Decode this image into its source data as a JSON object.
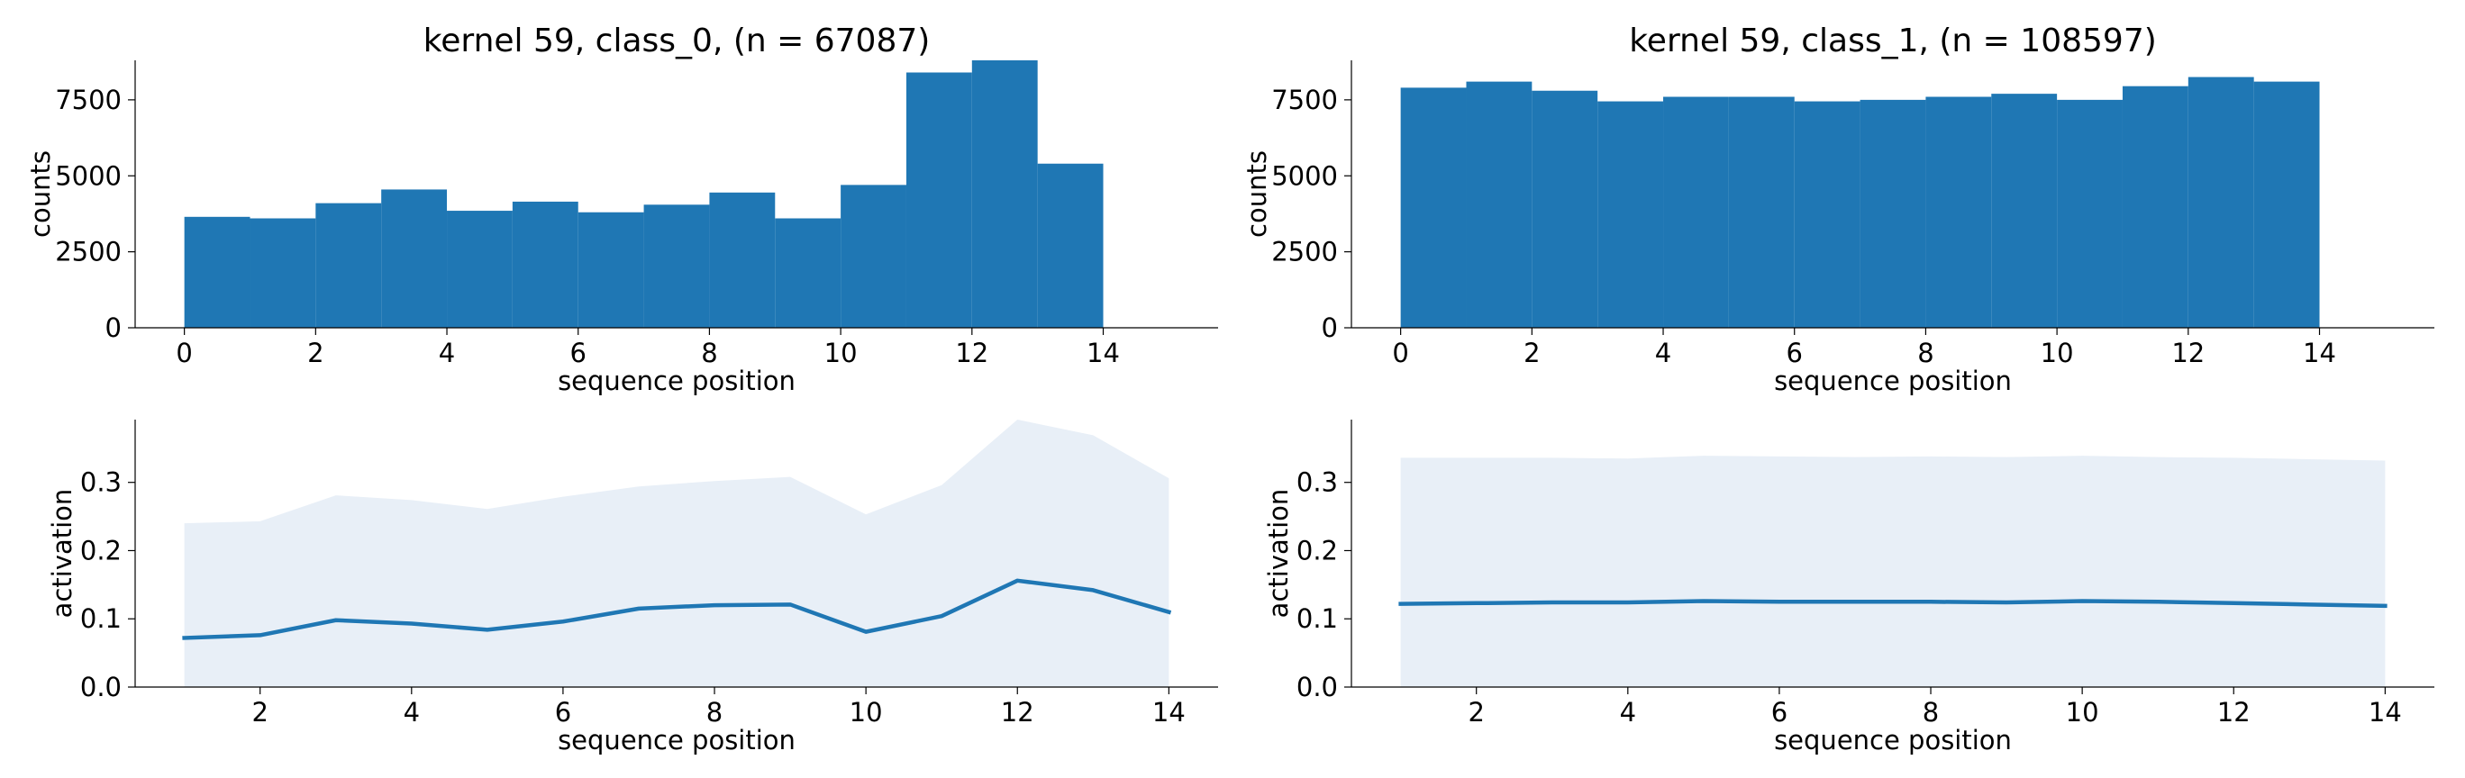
{
  "chart_data": [
    {
      "type": "bar",
      "title": "kernel 59, class_0, (n = 67087)",
      "xlabel": "sequence position",
      "ylabel": "counts",
      "bin_edges": [
        0,
        1,
        2,
        3,
        4,
        5,
        6,
        7,
        8,
        9,
        10,
        11,
        12,
        13,
        14
      ],
      "values": [
        3650,
        3600,
        4100,
        4550,
        3850,
        4150,
        3800,
        4050,
        4450,
        3600,
        4700,
        8400,
        8800,
        5400
      ],
      "xlim": [
        -0.75,
        15.75
      ],
      "ylim": [
        0,
        8800
      ],
      "xticks": [
        0,
        2,
        4,
        6,
        8,
        10,
        12,
        14
      ],
      "yticks": [
        0,
        2500,
        5000,
        7500
      ],
      "color": "#1f77b4",
      "grid": false
    },
    {
      "type": "bar",
      "title": "kernel 59, class_1, (n = 108597)",
      "xlabel": "sequence position",
      "ylabel": "counts",
      "bin_edges": [
        0,
        1,
        2,
        3,
        4,
        5,
        6,
        7,
        8,
        9,
        10,
        11,
        12,
        13,
        14
      ],
      "values": [
        7900,
        8100,
        7800,
        7450,
        7600,
        7600,
        7450,
        7500,
        7600,
        7700,
        7500,
        7950,
        8250,
        8100
      ],
      "xlim": [
        -0.75,
        15.75
      ],
      "ylim": [
        0,
        8800
      ],
      "xticks": [
        0,
        2,
        4,
        6,
        8,
        10,
        12,
        14
      ],
      "yticks": [
        0,
        2500,
        5000,
        7500
      ],
      "color": "#1f77b4",
      "grid": false
    },
    {
      "type": "line",
      "title": "",
      "xlabel": "sequence position",
      "ylabel": "activation",
      "x": [
        1,
        2,
        3,
        4,
        5,
        6,
        7,
        8,
        9,
        10,
        11,
        12,
        13,
        14
      ],
      "y": [
        0.072,
        0.076,
        0.098,
        0.093,
        0.084,
        0.096,
        0.115,
        0.12,
        0.121,
        0.081,
        0.104,
        0.156,
        0.142,
        0.11
      ],
      "band_upper": [
        0.24,
        0.243,
        0.281,
        0.274,
        0.261,
        0.279,
        0.294,
        0.302,
        0.308,
        0.253,
        0.296,
        0.392,
        0.369,
        0.306
      ],
      "band_lower": [
        0,
        0,
        0,
        0,
        0,
        0,
        0,
        0,
        0,
        0,
        0,
        0,
        0,
        0
      ],
      "xlim": [
        0.35,
        14.65
      ],
      "ylim": [
        0,
        0.392
      ],
      "xticks": [
        2,
        4,
        6,
        8,
        10,
        12,
        14
      ],
      "yticks": [
        0.0,
        0.1,
        0.2,
        0.3
      ],
      "color": "#1f77b4",
      "band_color": "#e8eff7",
      "grid": false
    },
    {
      "type": "line",
      "title": "",
      "xlabel": "sequence position",
      "ylabel": "activation",
      "x": [
        1,
        2,
        3,
        4,
        5,
        6,
        7,
        8,
        9,
        10,
        11,
        12,
        13,
        14
      ],
      "y": [
        0.122,
        0.123,
        0.124,
        0.124,
        0.126,
        0.125,
        0.125,
        0.125,
        0.124,
        0.126,
        0.125,
        0.123,
        0.121,
        0.119
      ],
      "band_upper": [
        0.336,
        0.336,
        0.336,
        0.335,
        0.339,
        0.338,
        0.337,
        0.338,
        0.337,
        0.339,
        0.337,
        0.336,
        0.334,
        0.332
      ],
      "band_lower": [
        0,
        0,
        0,
        0,
        0,
        0,
        0,
        0,
        0,
        0,
        0,
        0,
        0,
        0
      ],
      "xlim": [
        0.35,
        14.65
      ],
      "ylim": [
        0,
        0.392
      ],
      "xticks": [
        2,
        4,
        6,
        8,
        10,
        12,
        14
      ],
      "yticks": [
        0.0,
        0.1,
        0.2,
        0.3
      ],
      "color": "#1f77b4",
      "band_color": "#e8eff7",
      "grid": false
    }
  ]
}
